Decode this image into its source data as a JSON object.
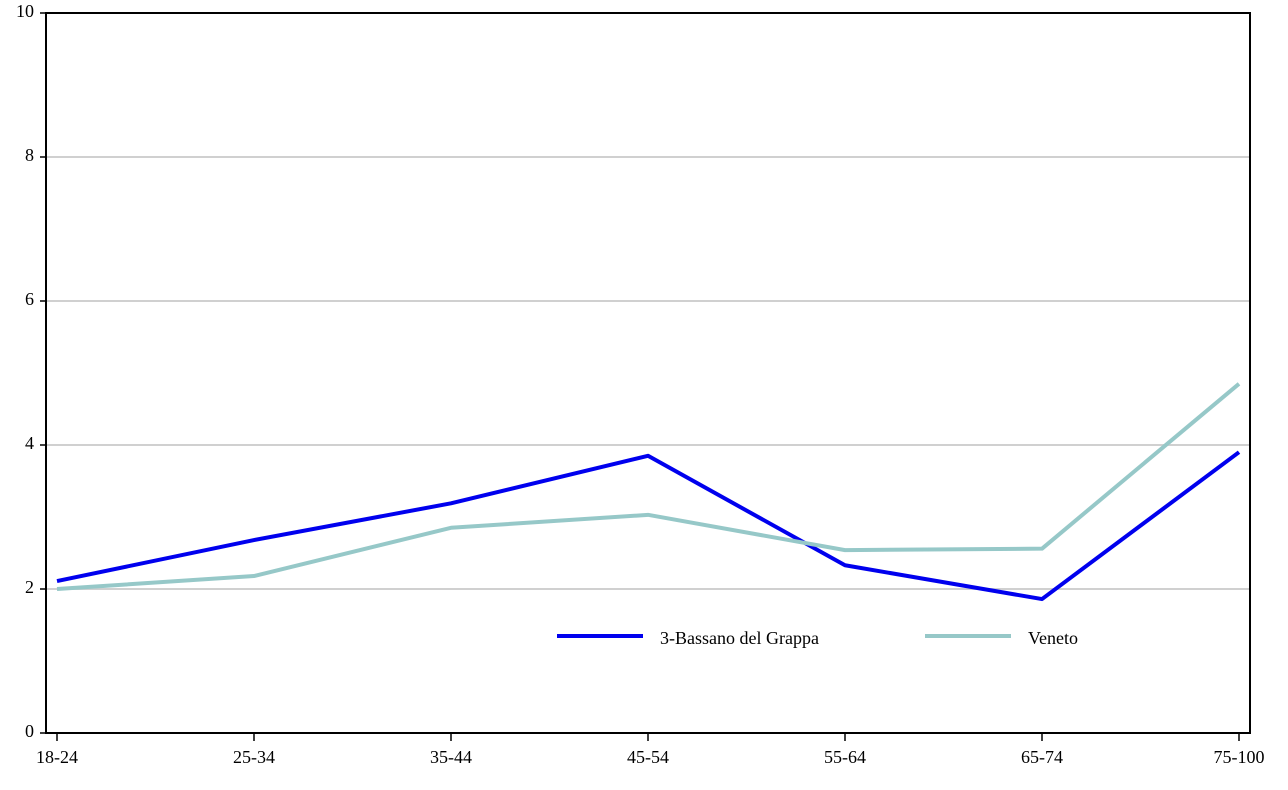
{
  "chart_data": {
    "type": "line",
    "categories": [
      "18-24",
      "25-34",
      "35-44",
      "45-54",
      "55-64",
      "65-74",
      "75-100"
    ],
    "series": [
      {
        "name": "3-Bassano del Grappa",
        "color": "#0000ee",
        "values": [
          2.11,
          2.68,
          3.19,
          3.85,
          2.33,
          1.86,
          3.9
        ]
      },
      {
        "name": "Veneto",
        "color": "#96c8c8",
        "values": [
          2.0,
          2.18,
          2.85,
          3.03,
          2.54,
          2.56,
          4.85
        ]
      }
    ],
    "ylim": [
      0,
      10
    ],
    "yticks": [
      0,
      2,
      4,
      6,
      8,
      10
    ],
    "grid": true,
    "legend": "lower center"
  }
}
